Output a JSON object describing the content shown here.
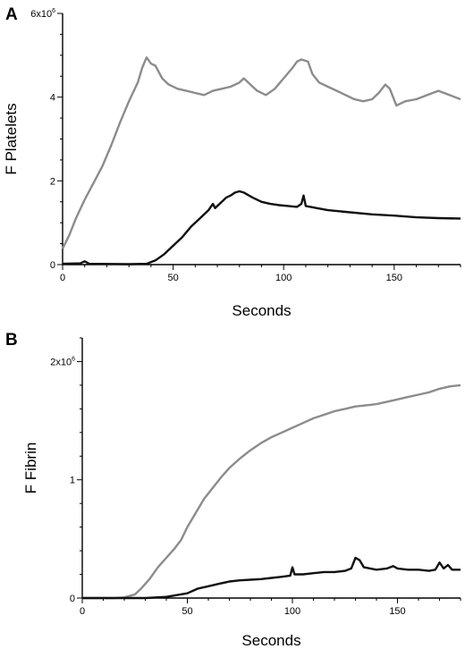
{
  "chart_data": [
    {
      "panel": "A",
      "type": "line",
      "xlabel": "Seconds",
      "ylabel": "F Platelets",
      "xlim": [
        0,
        180
      ],
      "ylim": [
        0,
        6000000
      ],
      "xticks": [
        "0",
        "50",
        "100",
        "150"
      ],
      "yticks": [
        "0",
        "2",
        "4"
      ],
      "ytop_label": {
        "base": "6x10",
        "exp": "6"
      },
      "grid": false,
      "series": [
        {
          "color": "#8c8c8c",
          "points": [
            [
              0,
              0.38
            ],
            [
              3,
              0.7
            ],
            [
              6,
              1.1
            ],
            [
              10,
              1.55
            ],
            [
              14,
              1.95
            ],
            [
              18,
              2.35
            ],
            [
              22,
              2.85
            ],
            [
              26,
              3.4
            ],
            [
              30,
              3.9
            ],
            [
              34,
              4.35
            ],
            [
              36,
              4.7
            ],
            [
              38,
              4.95
            ],
            [
              40,
              4.8
            ],
            [
              42,
              4.75
            ],
            [
              45,
              4.45
            ],
            [
              48,
              4.3
            ],
            [
              52,
              4.2
            ],
            [
              56,
              4.15
            ],
            [
              60,
              4.1
            ],
            [
              64,
              4.05
            ],
            [
              68,
              4.15
            ],
            [
              72,
              4.2
            ],
            [
              76,
              4.25
            ],
            [
              80,
              4.35
            ],
            [
              82,
              4.45
            ],
            [
              85,
              4.3
            ],
            [
              88,
              4.15
            ],
            [
              92,
              4.05
            ],
            [
              96,
              4.2
            ],
            [
              100,
              4.45
            ],
            [
              104,
              4.7
            ],
            [
              106,
              4.85
            ],
            [
              108,
              4.9
            ],
            [
              111,
              4.85
            ],
            [
              113,
              4.55
            ],
            [
              116,
              4.35
            ],
            [
              120,
              4.25
            ],
            [
              124,
              4.15
            ],
            [
              128,
              4.05
            ],
            [
              132,
              3.95
            ],
            [
              136,
              3.9
            ],
            [
              140,
              3.95
            ],
            [
              143,
              4.1
            ],
            [
              146,
              4.3
            ],
            [
              148,
              4.2
            ],
            [
              151,
              3.8
            ],
            [
              155,
              3.9
            ],
            [
              160,
              3.95
            ],
            [
              165,
              4.05
            ],
            [
              170,
              4.15
            ],
            [
              175,
              4.05
            ],
            [
              180,
              3.95
            ]
          ]
        },
        {
          "color": "#111111",
          "points": [
            [
              0,
              0.02
            ],
            [
              8,
              0.03
            ],
            [
              10,
              0.08
            ],
            [
              12,
              0.02
            ],
            [
              30,
              0.01
            ],
            [
              38,
              0.02
            ],
            [
              42,
              0.1
            ],
            [
              46,
              0.25
            ],
            [
              50,
              0.45
            ],
            [
              54,
              0.65
            ],
            [
              58,
              0.9
            ],
            [
              62,
              1.1
            ],
            [
              66,
              1.3
            ],
            [
              68,
              1.45
            ],
            [
              69,
              1.35
            ],
            [
              70,
              1.4
            ],
            [
              72,
              1.5
            ],
            [
              74,
              1.6
            ],
            [
              76,
              1.65
            ],
            [
              78,
              1.72
            ],
            [
              80,
              1.75
            ],
            [
              82,
              1.72
            ],
            [
              86,
              1.6
            ],
            [
              90,
              1.5
            ],
            [
              94,
              1.45
            ],
            [
              98,
              1.42
            ],
            [
              102,
              1.4
            ],
            [
              106,
              1.38
            ],
            [
              108,
              1.45
            ],
            [
              109,
              1.65
            ],
            [
              110,
              1.4
            ],
            [
              115,
              1.35
            ],
            [
              120,
              1.3
            ],
            [
              130,
              1.25
            ],
            [
              140,
              1.2
            ],
            [
              150,
              1.17
            ],
            [
              160,
              1.13
            ],
            [
              170,
              1.11
            ],
            [
              180,
              1.1
            ]
          ]
        }
      ]
    },
    {
      "panel": "B",
      "type": "line",
      "xlabel": "Seconds",
      "ylabel": "F Fibrin",
      "xlim": [
        0,
        180
      ],
      "ylim": [
        0,
        2200000
      ],
      "xticks": [
        "0",
        "50",
        "100",
        "150"
      ],
      "yticks": [
        "0",
        "1"
      ],
      "ytop_label": {
        "base": "2x10",
        "exp": "6"
      },
      "grid": false,
      "series": [
        {
          "color": "#8c8c8c",
          "points": [
            [
              0,
              0
            ],
            [
              15,
              0
            ],
            [
              20,
              0.005
            ],
            [
              25,
              0.03
            ],
            [
              28,
              0.08
            ],
            [
              32,
              0.16
            ],
            [
              36,
              0.26
            ],
            [
              40,
              0.34
            ],
            [
              44,
              0.42
            ],
            [
              47,
              0.49
            ],
            [
              50,
              0.6
            ],
            [
              54,
              0.72
            ],
            [
              58,
              0.84
            ],
            [
              62,
              0.93
            ],
            [
              66,
              1.02
            ],
            [
              70,
              1.1
            ],
            [
              75,
              1.18
            ],
            [
              80,
              1.25
            ],
            [
              85,
              1.31
            ],
            [
              90,
              1.36
            ],
            [
              95,
              1.4
            ],
            [
              100,
              1.44
            ],
            [
              105,
              1.48
            ],
            [
              110,
              1.52
            ],
            [
              115,
              1.55
            ],
            [
              120,
              1.58
            ],
            [
              125,
              1.6
            ],
            [
              130,
              1.62
            ],
            [
              135,
              1.63
            ],
            [
              140,
              1.64
            ],
            [
              145,
              1.66
            ],
            [
              150,
              1.68
            ],
            [
              155,
              1.7
            ],
            [
              160,
              1.72
            ],
            [
              165,
              1.74
            ],
            [
              170,
              1.77
            ],
            [
              175,
              1.79
            ],
            [
              180,
              1.8
            ]
          ]
        },
        {
          "color": "#111111",
          "points": [
            [
              0,
              0
            ],
            [
              30,
              0
            ],
            [
              40,
              0.01
            ],
            [
              50,
              0.04
            ],
            [
              55,
              0.08
            ],
            [
              60,
              0.1
            ],
            [
              65,
              0.12
            ],
            [
              70,
              0.14
            ],
            [
              75,
              0.15
            ],
            [
              80,
              0.155
            ],
            [
              85,
              0.16
            ],
            [
              90,
              0.17
            ],
            [
              95,
              0.18
            ],
            [
              99,
              0.19
            ],
            [
              100,
              0.26
            ],
            [
              101,
              0.2
            ],
            [
              105,
              0.2
            ],
            [
              110,
              0.21
            ],
            [
              115,
              0.22
            ],
            [
              120,
              0.22
            ],
            [
              125,
              0.23
            ],
            [
              128,
              0.25
            ],
            [
              130,
              0.34
            ],
            [
              132,
              0.32
            ],
            [
              134,
              0.26
            ],
            [
              140,
              0.24
            ],
            [
              145,
              0.25
            ],
            [
              148,
              0.27
            ],
            [
              150,
              0.25
            ],
            [
              155,
              0.24
            ],
            [
              160,
              0.24
            ],
            [
              165,
              0.23
            ],
            [
              168,
              0.24
            ],
            [
              170,
              0.3
            ],
            [
              172,
              0.25
            ],
            [
              174,
              0.28
            ],
            [
              176,
              0.24
            ],
            [
              180,
              0.24
            ]
          ]
        }
      ]
    }
  ]
}
